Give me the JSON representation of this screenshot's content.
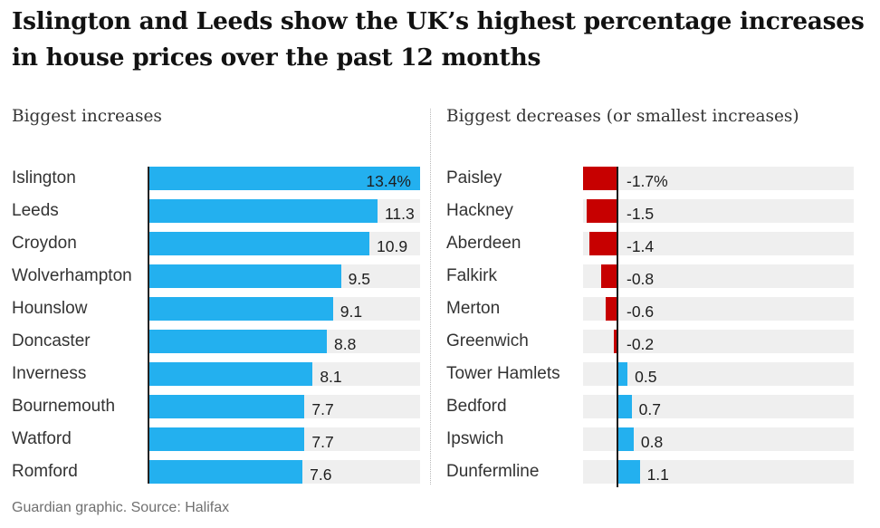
{
  "title_lines": [
    "Islington and Leeds show the UK’s highest percentage increases",
    "in house prices over the past 12 months"
  ],
  "source": "Guardian graphic. Source: Halifax",
  "colors": {
    "increase": "#23b0ef",
    "decrease": "#c70000",
    "track": "#efefef"
  },
  "chart_data": [
    {
      "type": "bar",
      "orientation": "horizontal",
      "title": "Biggest increases",
      "unit": "%",
      "categories": [
        "Islington",
        "Leeds",
        "Croydon",
        "Wolverhampton",
        "Hounslow",
        "Doncaster",
        "Inverness",
        "Bournemouth",
        "Watford",
        "Romford"
      ],
      "values": [
        13.4,
        11.3,
        10.9,
        9.5,
        9.1,
        8.8,
        8.1,
        7.7,
        7.7,
        7.6
      ],
      "labels": [
        "13.4%",
        "11.3",
        "10.9",
        "9.5",
        "9.1",
        "8.8",
        "8.1",
        "7.7",
        "7.7",
        "7.6"
      ],
      "xlim": [
        0,
        13.4
      ]
    },
    {
      "type": "bar",
      "orientation": "horizontal",
      "title": "Biggest decreases (or smallest increases)",
      "unit": "%",
      "categories": [
        "Paisley",
        "Hackney",
        "Aberdeen",
        "Falkirk",
        "Merton",
        "Greenwich",
        "Tower Hamlets",
        "Bedford",
        "Ipswich",
        "Dunfermline"
      ],
      "values": [
        -1.7,
        -1.5,
        -1.4,
        -0.8,
        -0.6,
        -0.2,
        0.5,
        0.7,
        0.8,
        1.1
      ],
      "labels": [
        "-1.7%",
        "-1.5",
        "-1.4",
        "-0.8",
        "-0.6",
        "-0.2",
        "0.5",
        "0.7",
        "0.8",
        "1.1"
      ],
      "xlim": [
        -2.0,
        13.4
      ]
    }
  ]
}
